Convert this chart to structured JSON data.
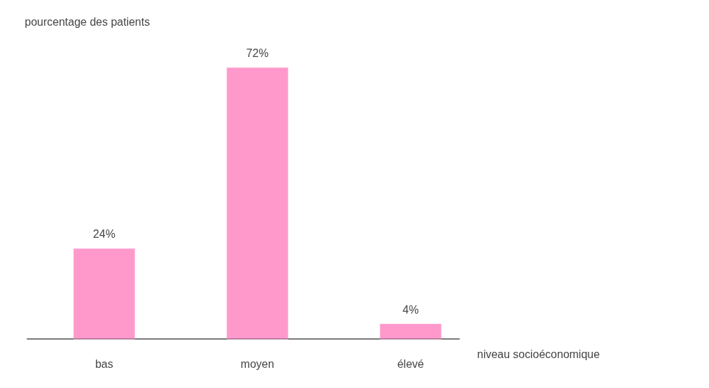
{
  "chart_data": {
    "type": "bar",
    "ylabel": "pourcentage des patients",
    "xlabel": "niveau socioéconomique",
    "categories": [
      "bas",
      "moyen",
      "élevé"
    ],
    "values": [
      24,
      72,
      4
    ],
    "value_labels": [
      "24%",
      "72%",
      "4%"
    ],
    "color": "#ff99cc",
    "grid": false
  }
}
